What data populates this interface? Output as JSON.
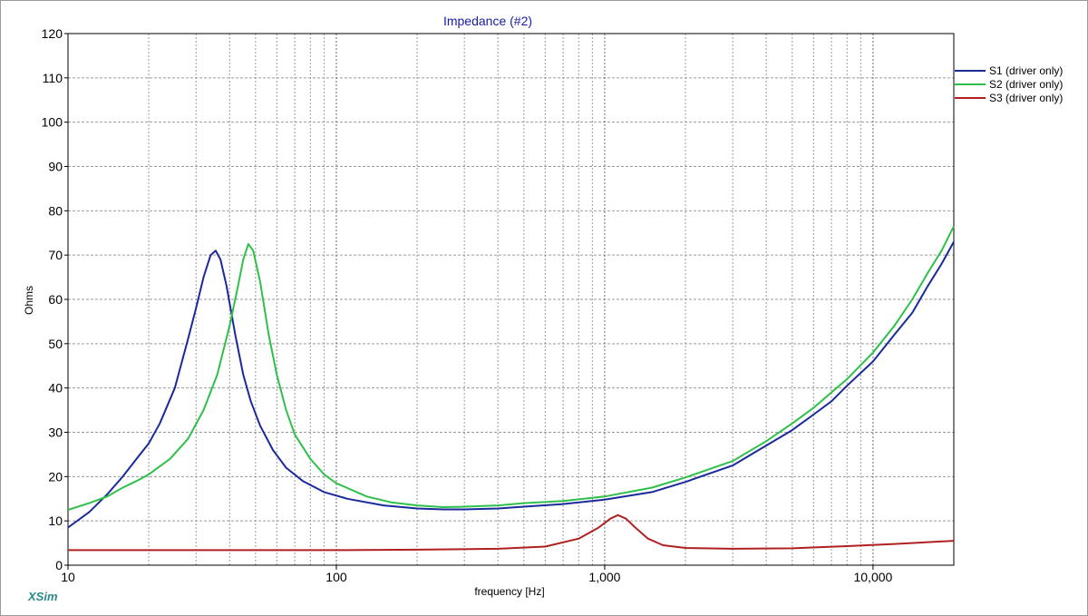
{
  "app": {
    "brand": "XSim"
  },
  "chart_data": {
    "type": "line",
    "title": "Impedance (#2)",
    "xlabel": "frequency [Hz]",
    "ylabel": "Ohms",
    "x_scale": "log",
    "xlim": [
      10,
      20000
    ],
    "ylim": [
      0,
      120
    ],
    "grid": true,
    "legend_position": "right",
    "x_major_ticks": [
      {
        "value": 10,
        "label": "10"
      },
      {
        "value": 100,
        "label": "100"
      },
      {
        "value": 1000,
        "label": "1,000"
      },
      {
        "value": 10000,
        "label": "10,000"
      }
    ],
    "y_ticks": [
      {
        "value": 0,
        "label": "0"
      },
      {
        "value": 10,
        "label": "10"
      },
      {
        "value": 20,
        "label": "20"
      },
      {
        "value": 30,
        "label": "30"
      },
      {
        "value": 40,
        "label": "40"
      },
      {
        "value": 50,
        "label": "50"
      },
      {
        "value": 60,
        "label": "60"
      },
      {
        "value": 70,
        "label": "70"
      },
      {
        "value": 80,
        "label": "80"
      },
      {
        "value": 90,
        "label": "90"
      },
      {
        "value": 100,
        "label": "100"
      },
      {
        "value": 110,
        "label": "110"
      },
      {
        "value": 120,
        "label": "120"
      }
    ],
    "colors": {
      "title": "#1a1aa8",
      "grid": "#9a9a9a",
      "axis": "#000000"
    },
    "series": [
      {
        "name": "S1 (driver only)",
        "color": "#1a2a9a",
        "points": [
          [
            10,
            8.5
          ],
          [
            12,
            12
          ],
          [
            14,
            16
          ],
          [
            16,
            20
          ],
          [
            18,
            24
          ],
          [
            20,
            27.5
          ],
          [
            22,
            32
          ],
          [
            25,
            40
          ],
          [
            28,
            51
          ],
          [
            30,
            58
          ],
          [
            32,
            65
          ],
          [
            34,
            70
          ],
          [
            35.5,
            71
          ],
          [
            37,
            69
          ],
          [
            39,
            63
          ],
          [
            42,
            52
          ],
          [
            45,
            43
          ],
          [
            48,
            37
          ],
          [
            52,
            31.5
          ],
          [
            58,
            26
          ],
          [
            65,
            22
          ],
          [
            75,
            19
          ],
          [
            90,
            16.5
          ],
          [
            110,
            15
          ],
          [
            150,
            13.5
          ],
          [
            200,
            12.8
          ],
          [
            250,
            12.6
          ],
          [
            300,
            12.6
          ],
          [
            400,
            12.8
          ],
          [
            500,
            13.2
          ],
          [
            700,
            13.8
          ],
          [
            1000,
            14.8
          ],
          [
            1500,
            16.5
          ],
          [
            2000,
            18.8
          ],
          [
            3000,
            22.5
          ],
          [
            4000,
            27
          ],
          [
            5000,
            30.5
          ],
          [
            6000,
            34
          ],
          [
            7000,
            37
          ],
          [
            8000,
            40.5
          ],
          [
            10000,
            46
          ],
          [
            12000,
            52
          ],
          [
            14000,
            57
          ],
          [
            16000,
            63
          ],
          [
            18000,
            68
          ],
          [
            20000,
            73
          ]
        ]
      },
      {
        "name": "S2 (driver only)",
        "color": "#2ec04a",
        "points": [
          [
            10,
            12.5
          ],
          [
            12,
            14
          ],
          [
            14,
            15.5
          ],
          [
            16,
            17.5
          ],
          [
            18,
            19
          ],
          [
            20,
            20.5
          ],
          [
            24,
            24
          ],
          [
            28,
            28.5
          ],
          [
            32,
            35
          ],
          [
            36,
            43
          ],
          [
            40,
            54
          ],
          [
            43,
            63
          ],
          [
            45,
            69
          ],
          [
            47,
            72.5
          ],
          [
            49,
            71
          ],
          [
            52,
            64
          ],
          [
            56,
            52
          ],
          [
            60,
            43
          ],
          [
            65,
            35
          ],
          [
            70,
            29.5
          ],
          [
            80,
            24
          ],
          [
            90,
            20.5
          ],
          [
            100,
            18.5
          ],
          [
            130,
            15.5
          ],
          [
            160,
            14.2
          ],
          [
            200,
            13.5
          ],
          [
            250,
            13.1
          ],
          [
            300,
            13.2
          ],
          [
            400,
            13.5
          ],
          [
            500,
            14
          ],
          [
            700,
            14.5
          ],
          [
            1000,
            15.5
          ],
          [
            1500,
            17.5
          ],
          [
            2000,
            19.8
          ],
          [
            3000,
            23.5
          ],
          [
            4000,
            28
          ],
          [
            5000,
            32
          ],
          [
            6000,
            35.5
          ],
          [
            7000,
            39
          ],
          [
            8000,
            42
          ],
          [
            10000,
            48
          ],
          [
            12000,
            54
          ],
          [
            14000,
            60
          ],
          [
            16000,
            66
          ],
          [
            18000,
            71
          ],
          [
            20000,
            76.5
          ]
        ]
      },
      {
        "name": "S3 (driver only)",
        "color": "#b02020",
        "points": [
          [
            10,
            3.4
          ],
          [
            50,
            3.4
          ],
          [
            100,
            3.4
          ],
          [
            200,
            3.5
          ],
          [
            400,
            3.7
          ],
          [
            600,
            4.2
          ],
          [
            800,
            6
          ],
          [
            950,
            8.5
          ],
          [
            1050,
            10.5
          ],
          [
            1120,
            11.3
          ],
          [
            1200,
            10.5
          ],
          [
            1300,
            8.5
          ],
          [
            1450,
            6
          ],
          [
            1650,
            4.5
          ],
          [
            2000,
            3.9
          ],
          [
            3000,
            3.7
          ],
          [
            5000,
            3.8
          ],
          [
            8000,
            4.3
          ],
          [
            12000,
            4.8
          ],
          [
            20000,
            5.5
          ]
        ]
      }
    ]
  }
}
